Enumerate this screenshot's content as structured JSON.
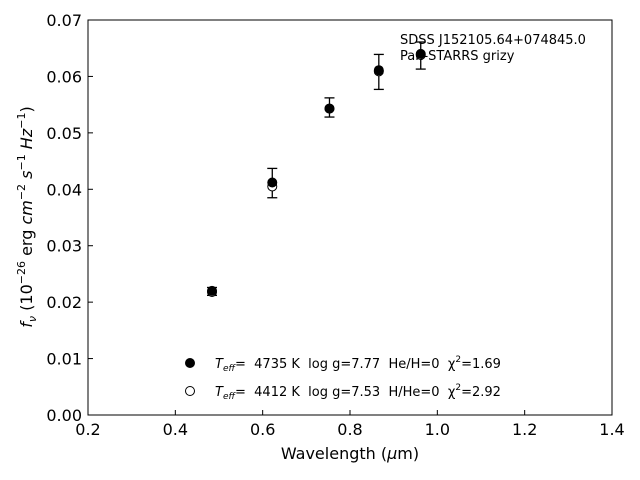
{
  "chart_data": {
    "type": "scatter",
    "xlim": [
      0.2,
      1.4
    ],
    "ylim": [
      0.0,
      0.07
    ],
    "xticks": [
      "0.2",
      "0.4",
      "0.6",
      "0.8",
      "1.0",
      "1.2",
      "1.4"
    ],
    "yticks": [
      "0.00",
      "0.01",
      "0.02",
      "0.03",
      "0.04",
      "0.05",
      "0.06",
      "0.07"
    ],
    "xlabel": "Wavelength (μm)",
    "ylabel": "fν (10⁻²⁶ erg cm⁻² s⁻¹ Hz⁻¹)",
    "annotation": [
      "SDSS J152105.64+074845.0",
      "Pan-STARRS grizy"
    ],
    "legend_position": "bottom-center",
    "observed": {
      "x": [
        0.484,
        0.622,
        0.753,
        0.866,
        0.962
      ],
      "y": [
        0.0219,
        0.0411,
        0.0545,
        0.0608,
        0.0637
      ],
      "yerr": [
        0.0007,
        0.0026,
        0.0017,
        0.0031,
        0.0024
      ]
    },
    "series": [
      {
        "label_parts": [
          "T",
          "eff",
          "=  4735 K  log g=7.77  He/H=0  χ",
          "2",
          "=1.69"
        ],
        "marker": "filled-circle",
        "x": [
          0.484,
          0.622,
          0.753,
          0.866,
          0.962
        ],
        "y": [
          0.022,
          0.0412,
          0.0543,
          0.0611,
          0.064
        ]
      },
      {
        "label_parts": [
          "T",
          "eff",
          "=  4412 K  log g=7.53  H/He=0  χ",
          "2",
          "=2.92"
        ],
        "marker": "open-circle",
        "x": [
          0.484,
          0.622,
          0.753,
          0.866,
          0.962
        ],
        "y": [
          0.0218,
          0.0405,
          0.0543,
          0.0609,
          0.0638
        ]
      }
    ]
  }
}
